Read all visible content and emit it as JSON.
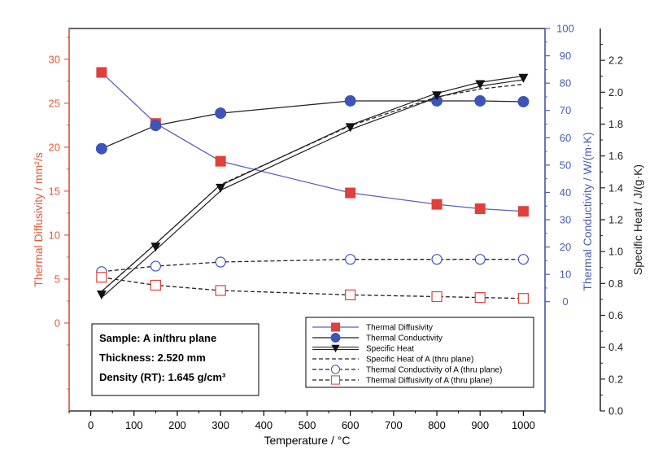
{
  "chart_data": {
    "type": "line",
    "title": "",
    "x": [
      25,
      150,
      300,
      600,
      800,
      900,
      1000
    ],
    "xlabel": "Temperature / °C",
    "xlim": [
      -50,
      1050
    ],
    "xticks": [
      0,
      100,
      200,
      300,
      400,
      500,
      600,
      700,
      800,
      900,
      1000
    ],
    "axes": {
      "left": {
        "label": "Thermal Diffusivity / mm²/s",
        "range": [
          -10,
          33.5
        ],
        "ticks": [
          0,
          5,
          10,
          15,
          20,
          25,
          30
        ],
        "color": "#e05a3c"
      },
      "right1": {
        "label": "Thermal Conductivity / W/(m·K)",
        "range": [
          -40,
          100
        ],
        "ticks": [
          0,
          10,
          20,
          30,
          40,
          50,
          60,
          70,
          80,
          90,
          100
        ],
        "color": "#4a5dad"
      },
      "right2": {
        "label": "Specific Heat / J/(g·K)",
        "range": [
          0,
          2.4
        ],
        "ticks": [
          "0.0",
          "0.2",
          "0.4",
          "0.6",
          "0.8",
          "1.0",
          "1.2",
          "1.4",
          "1.6",
          "1.8",
          "2.0",
          "2.2"
        ],
        "color": "#222222"
      }
    },
    "series": [
      {
        "name": "Thermal Diffusivity",
        "axis": "left",
        "marker": "square-filled",
        "color": "#e0403a",
        "line": "solid",
        "line_color": "#5a5fc0",
        "values": [
          28.5,
          22.7,
          18.4,
          14.8,
          13.5,
          13.0,
          12.7
        ]
      },
      {
        "name": "Thermal Conductivity",
        "axis": "right1",
        "marker": "circle-filled",
        "color": "#3d55b8",
        "line": "solid",
        "line_color": "#222222",
        "values": [
          56,
          64.5,
          69,
          73.5,
          73.5,
          73.5,
          73.2
        ]
      },
      {
        "name": "Specific Heat",
        "axis": "right2",
        "marker": "triangle-down-filled",
        "color": "#111111",
        "line": "double",
        "line_color": "#222222",
        "values": [
          0.73,
          1.03,
          1.4,
          1.78,
          1.98,
          2.05,
          2.09
        ]
      },
      {
        "name": "Specific Heat of A (thru plane)",
        "axis": "right2",
        "marker": "none",
        "color": "#111111",
        "line": "dashed",
        "line_color": "#222222",
        "values": [
          0.75,
          1.05,
          1.42,
          1.79,
          1.97,
          2.02,
          2.05
        ]
      },
      {
        "name": "Thermal Conductivity of A (thru plane)",
        "axis": "right1",
        "marker": "circle-open",
        "color": "#3d55b8",
        "line": "dashed",
        "line_color": "#222222",
        "values": [
          11.0,
          13.0,
          14.5,
          15.5,
          15.5,
          15.5,
          15.5
        ]
      },
      {
        "name": "Thermal Diffusivity of A (thru plane)",
        "axis": "left",
        "marker": "square-open",
        "color": "#e0403a",
        "line": "dashed",
        "line_color": "#222222",
        "values": [
          5.2,
          4.3,
          3.7,
          3.2,
          3.0,
          2.9,
          2.8
        ]
      }
    ],
    "legend": {
      "placement": "bottom-right"
    },
    "sample_info": [
      "Sample: A in/thru plane",
      "Thickness: 2.520 mm",
      "Density (RT): 1.645 g/cm³"
    ],
    "grid": false
  }
}
